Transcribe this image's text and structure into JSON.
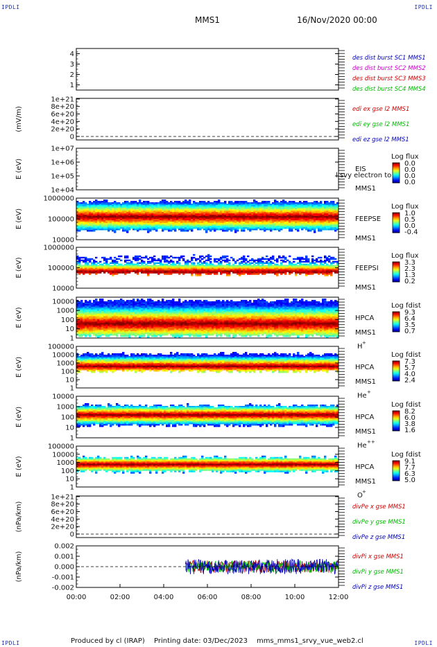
{
  "corner_label": "IPDLI",
  "header": {
    "mission": "MMS1",
    "datetime": "16/Nov/2020 00:00"
  },
  "footer": {
    "producer": "Produced by cl (IRAP)",
    "printing": "Printing date: 03/Dec/2023",
    "script": "mms_mms1_srvy_vue_web2.cl"
  },
  "colors": {
    "red": "#cc0000",
    "green": "#00bb00",
    "blue": "#0000bb",
    "magenta": "#cc00cc",
    "orange": "#ff7700"
  },
  "chart_data": [
    {
      "type": "line",
      "id": "p1",
      "ylabel": "",
      "yticks": [
        "1",
        "2",
        "3",
        "4"
      ],
      "ylim": [
        0.5,
        4.5
      ],
      "legend": [
        {
          "text": "des dist burst SC1 MMS1",
          "color": "blue"
        },
        {
          "text": "des dist burst SC2 MMS2",
          "color": "magenta"
        },
        {
          "text": "des dist burst SC3 MMS3",
          "color": "red"
        },
        {
          "text": "des dist burst SC4 MMS4",
          "color": "green"
        }
      ]
    },
    {
      "type": "line",
      "id": "p2",
      "ylabel": "(mV/m)",
      "yticks": [
        "0",
        "2e+20",
        "4e+20",
        "6e+20",
        "8e+20",
        "1e+21"
      ],
      "ylim": [
        0,
        1e+21
      ],
      "zero_line": true,
      "legend": [
        {
          "text": "edi ex gse l2 MMS1",
          "color": "red"
        },
        {
          "text": "edi ey gse l2 MMS1",
          "color": "green"
        },
        {
          "text": "edi ez gse l2 MMS1",
          "color": "blue"
        }
      ]
    },
    {
      "type": "heatmap",
      "id": "p3",
      "ylabel": "E (eV)",
      "yticks": [
        "1e+04",
        "1e+05",
        "1e+06",
        "1e+07"
      ],
      "ylim": [
        10000,
        10000000
      ],
      "yscale": "log",
      "instrument": "EIS",
      "overlay_text": "l svy electron to",
      "sc": "MMS1",
      "cbar_title": "Log flux",
      "cbar_ticks": [
        "0.0",
        "0.0",
        "0.0",
        "0.0"
      ]
    },
    {
      "type": "heatmap",
      "id": "p4",
      "ylabel": "E (eV)",
      "yticks": [
        "10000",
        "100000",
        "1000000"
      ],
      "ylim": [
        10000,
        1000000
      ],
      "yscale": "log",
      "instrument": "FEEPSE",
      "sc": "MMS1",
      "cbar_title": "Log flux",
      "cbar_ticks": [
        "1.0",
        "0.5",
        "0.0",
        "-0.4"
      ]
    },
    {
      "type": "heatmap",
      "id": "p5",
      "ylabel": "E (eV)",
      "yticks": [
        "10000",
        "100000",
        "1000000"
      ],
      "ylim": [
        10000,
        1000000
      ],
      "yscale": "log",
      "instrument": "FEEPSI",
      "sc": "MMS1",
      "cbar_title": "Log flux",
      "cbar_ticks": [
        "3.3",
        "2.3",
        "1.3",
        "0.2"
      ]
    },
    {
      "type": "heatmap",
      "id": "p6",
      "ylabel": "E (eV)",
      "yticks": [
        "1",
        "10",
        "100",
        "1000",
        "10000"
      ],
      "ylim": [
        1,
        30000
      ],
      "yscale": "log",
      "instrument": "HPCA",
      "sc": "MMS1",
      "species": "H",
      "species_sup": "+",
      "cbar_title": "Log fdist",
      "cbar_ticks": [
        "9.3",
        "6.4",
        "3.5",
        "0.7"
      ]
    },
    {
      "type": "heatmap",
      "id": "p7",
      "ylabel": "E (eV)",
      "yticks": [
        "1",
        "10",
        "100",
        "1000",
        "10000",
        "100000"
      ],
      "ylim": [
        1,
        100000
      ],
      "yscale": "log",
      "instrument": "HPCA",
      "sc": "MMS1",
      "species": "He",
      "species_sup": "+",
      "cbar_title": "Log fdist",
      "cbar_ticks": [
        "7.3",
        "5.7",
        "4.0",
        "2.4"
      ]
    },
    {
      "type": "heatmap",
      "id": "p8",
      "ylabel": "E (eV)",
      "yticks": [
        "1",
        "10",
        "100",
        "1000",
        "10000"
      ],
      "ylim": [
        1,
        10000
      ],
      "yscale": "log",
      "instrument": "HPCA",
      "sc": "MMS1",
      "species": "He",
      "species_sup": "++",
      "cbar_title": "Log fdist",
      "cbar_ticks": [
        "8.2",
        "6.0",
        "3.8",
        "1.6"
      ]
    },
    {
      "type": "heatmap",
      "id": "p9",
      "ylabel": "E (eV)",
      "yticks": [
        "1",
        "10",
        "100",
        "1000",
        "10000",
        "100000"
      ],
      "ylim": [
        1,
        100000
      ],
      "yscale": "log",
      "instrument": "HPCA",
      "sc": "MMS1",
      "species": "O",
      "species_sup": "+",
      "cbar_title": "Log fdist",
      "cbar_ticks": [
        "9.1",
        "7.7",
        "6.3",
        "5.0"
      ]
    },
    {
      "type": "line",
      "id": "p10",
      "ylabel": "(nPa/km)",
      "yticks": [
        "0",
        "2e+20",
        "4e+20",
        "6e+20",
        "8e+20",
        "1e+21"
      ],
      "ylim": [
        0,
        1e+21
      ],
      "zero_line": true,
      "legend": [
        {
          "text": "divPe x gse MMS1",
          "color": "red"
        },
        {
          "text": "divPe y gse MMS1",
          "color": "green"
        },
        {
          "text": "divPe z gse MMS1",
          "color": "blue"
        }
      ]
    },
    {
      "type": "line",
      "id": "p11",
      "ylabel": "(nPa/km)",
      "yticks": [
        "-0.002",
        "-0.001",
        "0.000",
        "0.001",
        "0.002"
      ],
      "ylim": [
        -0.0025,
        0.0025
      ],
      "zero_line": true,
      "data_start": "05:00",
      "data_end": "12:00",
      "legend": [
        {
          "text": "divPi x gse MMS1",
          "color": "red"
        },
        {
          "text": "divPi y gse MMS1",
          "color": "green"
        },
        {
          "text": "divPi z gse MMS1",
          "color": "blue"
        }
      ]
    }
  ],
  "time_axis": {
    "ticks": [
      "00:00",
      "02:00",
      "04:00",
      "06:00",
      "08:00",
      "10:00",
      "12:00"
    ],
    "range": [
      "00:00",
      "12:00"
    ]
  }
}
